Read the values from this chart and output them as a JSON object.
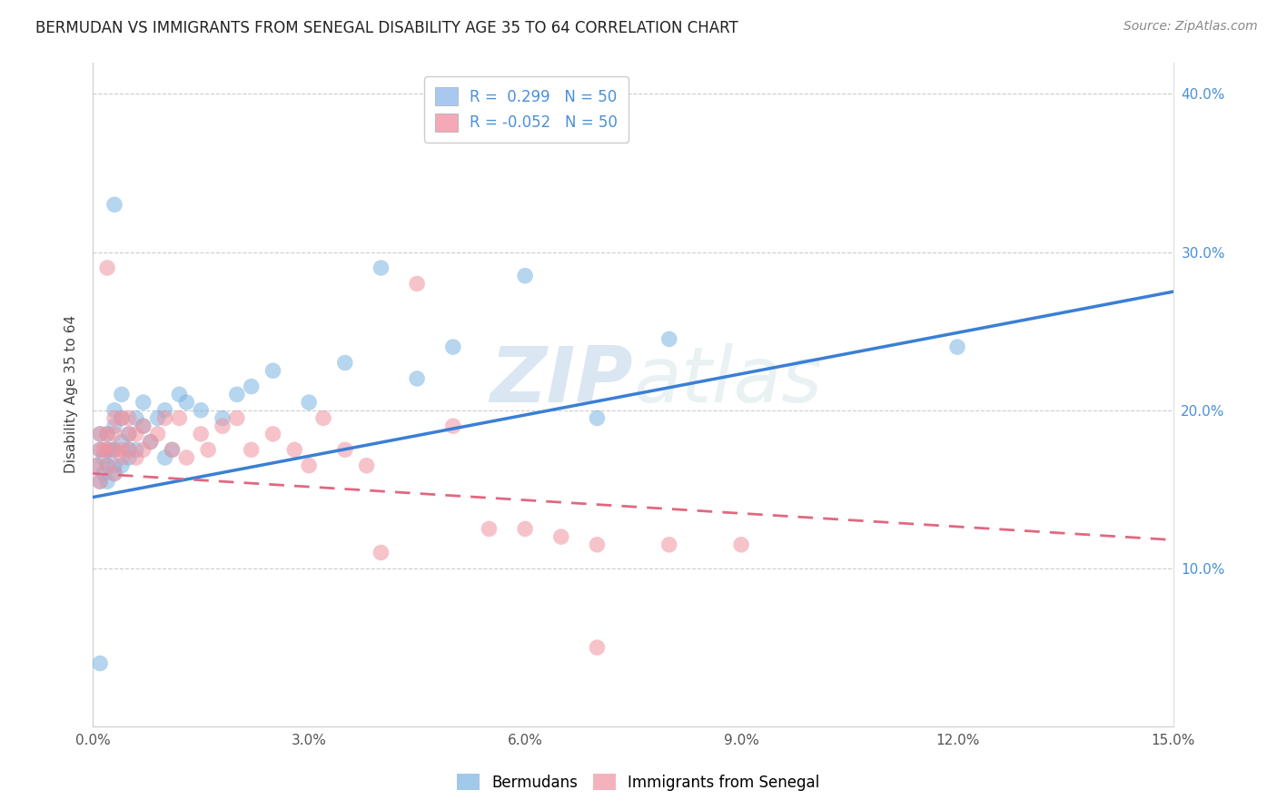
{
  "title": "BERMUDAN VS IMMIGRANTS FROM SENEGAL DISABILITY AGE 35 TO 64 CORRELATION CHART",
  "source": "Source: ZipAtlas.com",
  "ylabel": "Disability Age 35 to 64",
  "xlim": [
    0.0,
    0.15
  ],
  "ylim": [
    0.0,
    0.42
  ],
  "x_tick_labels": [
    "0.0%",
    "3.0%",
    "6.0%",
    "9.0%",
    "12.0%",
    "15.0%"
  ],
  "x_tick_vals": [
    0.0,
    0.03,
    0.06,
    0.09,
    0.12,
    0.15
  ],
  "y_tick_labels": [
    "10.0%",
    "20.0%",
    "30.0%",
    "40.0%"
  ],
  "y_tick_vals": [
    0.1,
    0.2,
    0.3,
    0.4
  ],
  "legend_entries": [
    {
      "label": "R =  0.299   N = 50",
      "color": "#a8c8f0"
    },
    {
      "label": "R = -0.052   N = 50",
      "color": "#f4a8b8"
    }
  ],
  "legend_labels_bottom": [
    "Bermudans",
    "Immigrants from Senegal"
  ],
  "blue_color": "#7ab3e0",
  "pink_color": "#f093a0",
  "line_blue": "#3a7fd5",
  "line_pink": "#e06880",
  "watermark_zip": "ZIP",
  "watermark_atlas": "atlas",
  "blue_line_y0": 0.145,
  "blue_line_y1": 0.275,
  "pink_line_y0": 0.16,
  "pink_line_y1": 0.118,
  "bermudans_x": [
    0.0005,
    0.001,
    0.001,
    0.001,
    0.0015,
    0.0015,
    0.002,
    0.002,
    0.002,
    0.002,
    0.0025,
    0.003,
    0.003,
    0.003,
    0.003,
    0.003,
    0.004,
    0.004,
    0.004,
    0.004,
    0.005,
    0.005,
    0.005,
    0.006,
    0.006,
    0.007,
    0.007,
    0.008,
    0.009,
    0.01,
    0.01,
    0.011,
    0.012,
    0.013,
    0.015,
    0.018,
    0.02,
    0.022,
    0.025,
    0.03,
    0.035,
    0.04,
    0.045,
    0.05,
    0.06,
    0.07,
    0.08,
    0.12,
    0.001,
    0.003
  ],
  "bermudans_y": [
    0.165,
    0.155,
    0.175,
    0.185,
    0.16,
    0.17,
    0.155,
    0.165,
    0.175,
    0.185,
    0.175,
    0.165,
    0.175,
    0.19,
    0.2,
    0.16,
    0.18,
    0.195,
    0.165,
    0.21,
    0.17,
    0.185,
    0.175,
    0.195,
    0.175,
    0.19,
    0.205,
    0.18,
    0.195,
    0.17,
    0.2,
    0.175,
    0.21,
    0.205,
    0.2,
    0.195,
    0.21,
    0.215,
    0.225,
    0.205,
    0.23,
    0.29,
    0.22,
    0.24,
    0.285,
    0.195,
    0.245,
    0.24,
    0.04,
    0.33
  ],
  "senegal_x": [
    0.0005,
    0.001,
    0.001,
    0.001,
    0.0015,
    0.002,
    0.002,
    0.002,
    0.003,
    0.003,
    0.003,
    0.003,
    0.004,
    0.004,
    0.004,
    0.005,
    0.005,
    0.005,
    0.006,
    0.006,
    0.007,
    0.007,
    0.008,
    0.009,
    0.01,
    0.011,
    0.012,
    0.013,
    0.015,
    0.016,
    0.018,
    0.02,
    0.022,
    0.025,
    0.028,
    0.03,
    0.032,
    0.035,
    0.038,
    0.04,
    0.045,
    0.05,
    0.055,
    0.06,
    0.065,
    0.07,
    0.08,
    0.09,
    0.07,
    0.002
  ],
  "senegal_y": [
    0.165,
    0.175,
    0.185,
    0.155,
    0.175,
    0.175,
    0.185,
    0.165,
    0.175,
    0.185,
    0.195,
    0.16,
    0.175,
    0.195,
    0.17,
    0.185,
    0.175,
    0.195,
    0.185,
    0.17,
    0.19,
    0.175,
    0.18,
    0.185,
    0.195,
    0.175,
    0.195,
    0.17,
    0.185,
    0.175,
    0.19,
    0.195,
    0.175,
    0.185,
    0.175,
    0.165,
    0.195,
    0.175,
    0.165,
    0.11,
    0.28,
    0.19,
    0.125,
    0.125,
    0.12,
    0.115,
    0.115,
    0.115,
    0.05,
    0.29
  ]
}
